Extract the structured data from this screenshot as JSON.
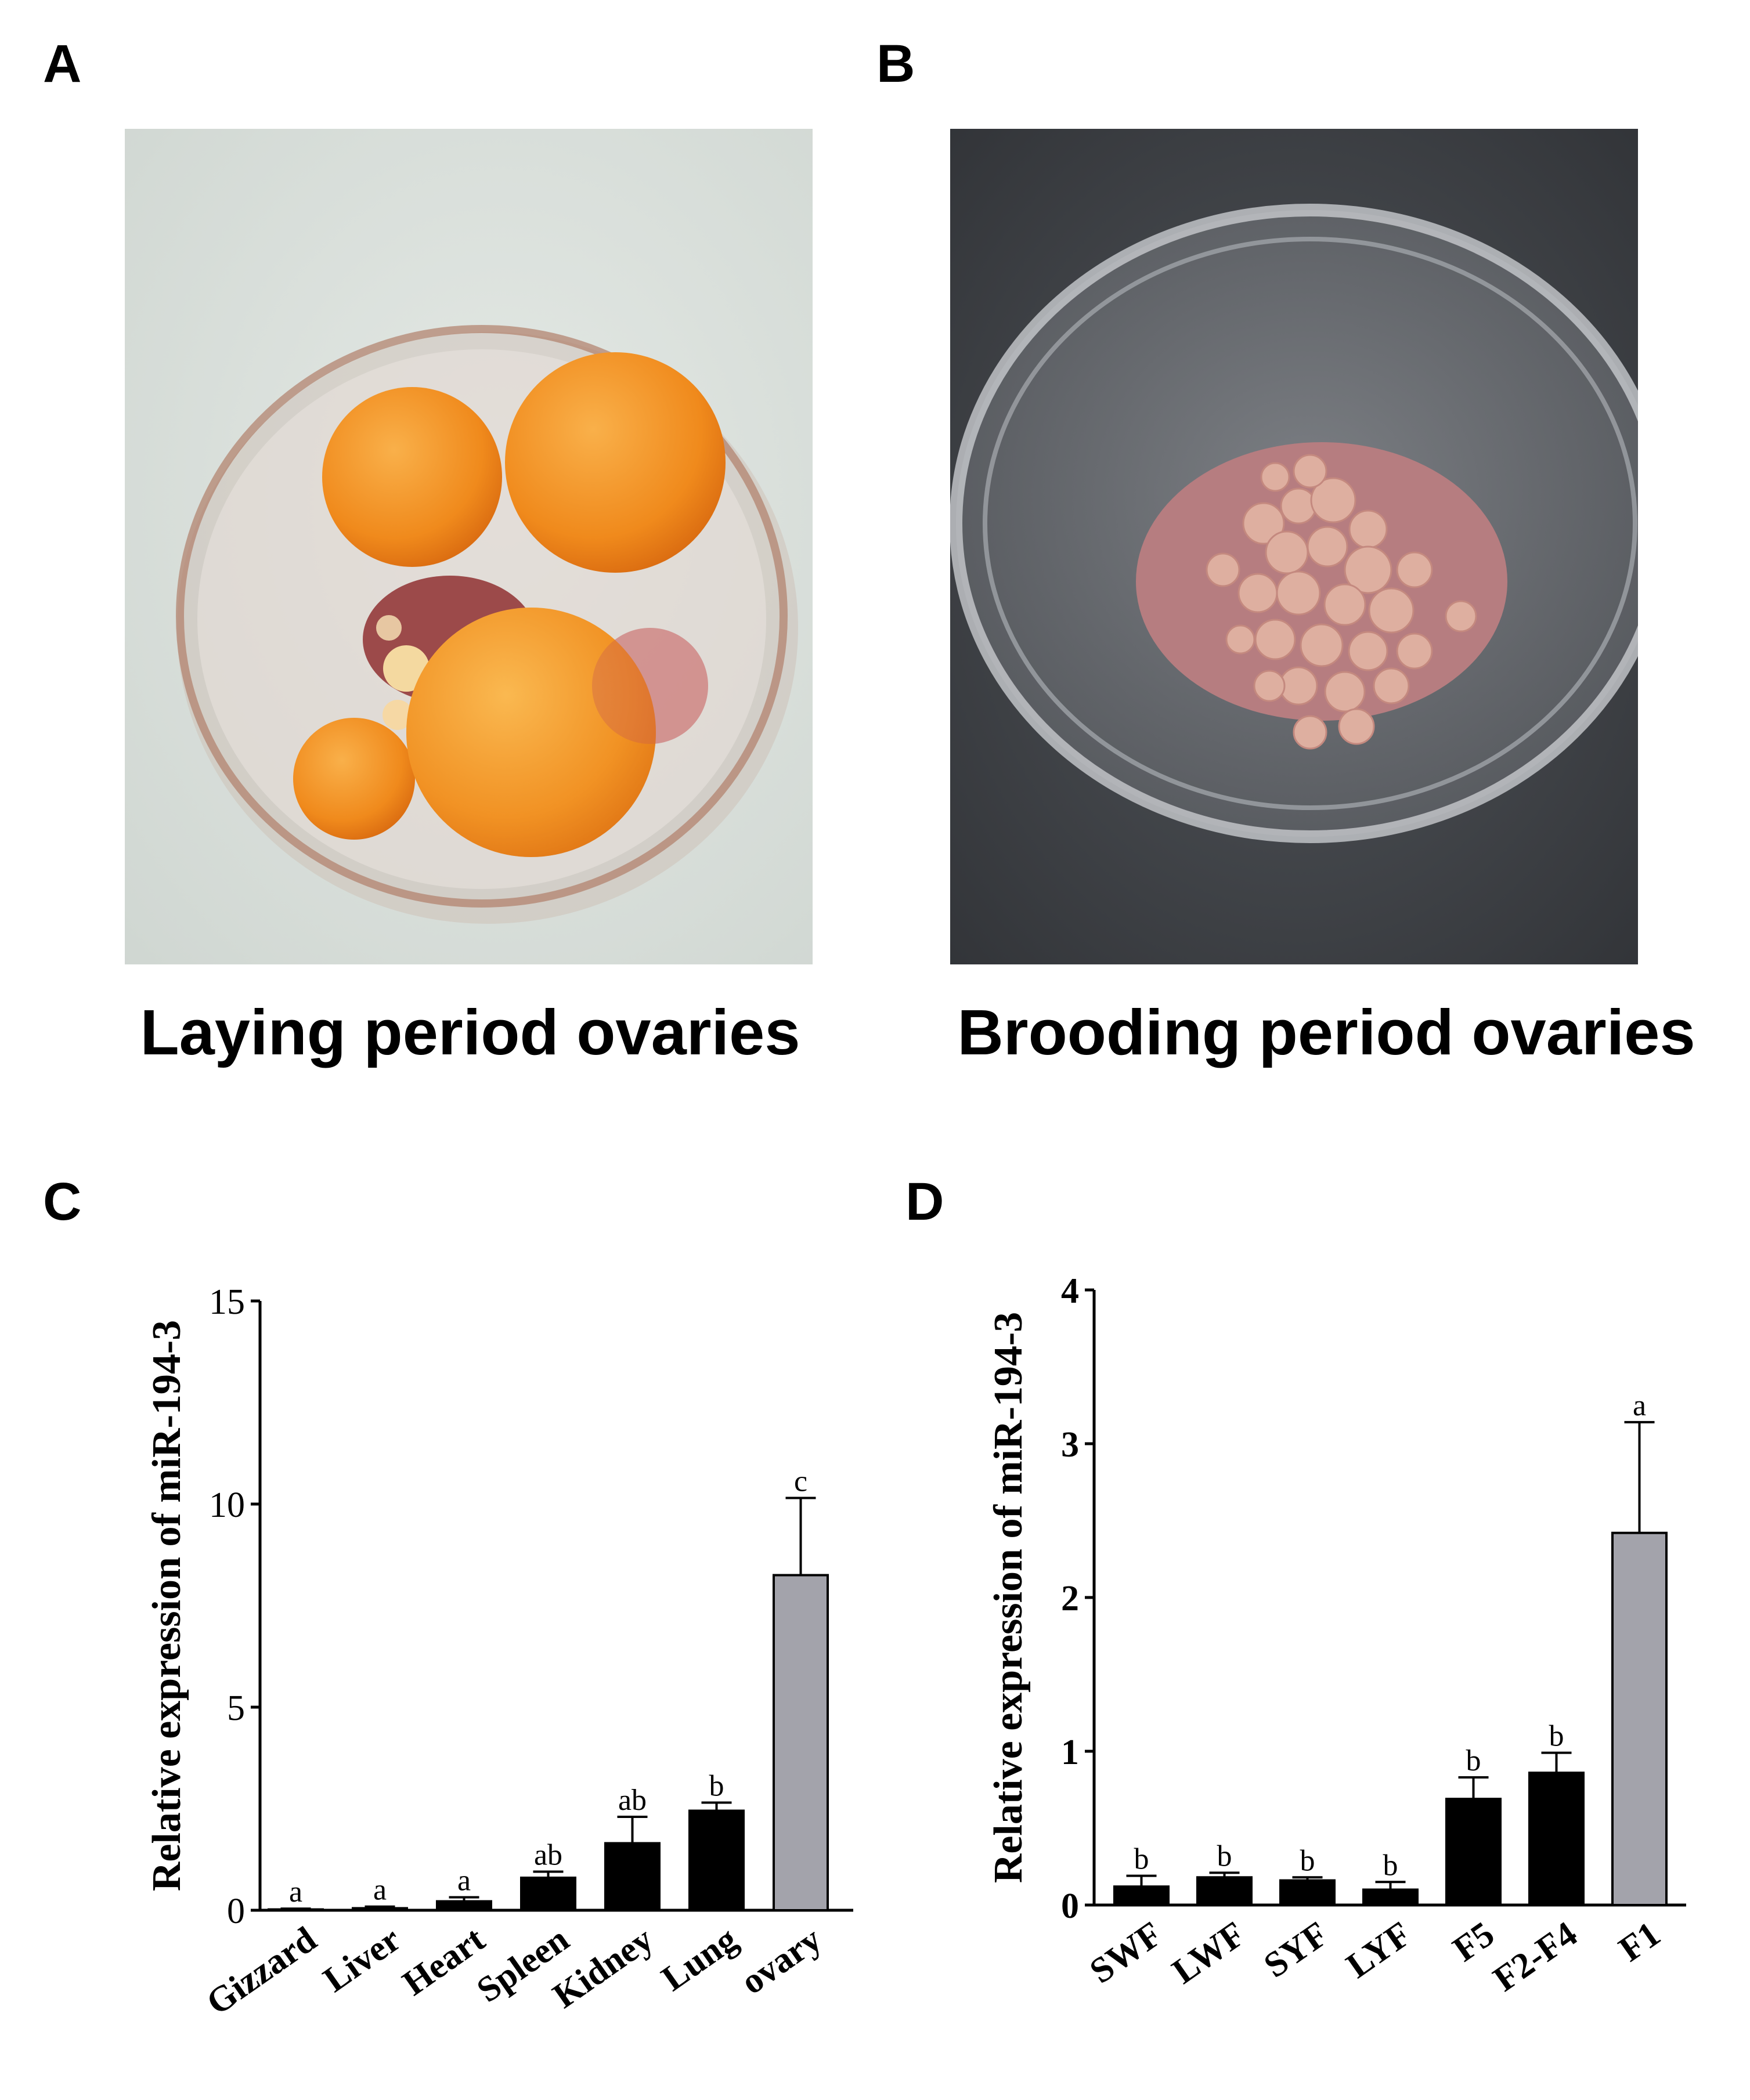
{
  "panels": {
    "A": {
      "letter": "A",
      "caption": "Laying period ovaries"
    },
    "B": {
      "letter": "B",
      "caption": "Brooding period ovaries"
    },
    "C": {
      "letter": "C"
    },
    "D": {
      "letter": "D"
    }
  },
  "colors": {
    "black_bar": "#000000",
    "grey_bar": "#a3a3ab",
    "photo_a_background": "#dce2dd",
    "photo_b_background": "#3b3e42",
    "yolk_orange": "#f08a1c",
    "follicle_pink": "#d49c92"
  },
  "chart_data": [
    {
      "panel": "C",
      "type": "bar",
      "ylabel": "Relative expression of miR-194-3",
      "ylim": [
        0,
        15
      ],
      "yticks": [
        "0",
        "5",
        "10",
        "15"
      ],
      "categories": [
        "Gizzard",
        "Liver",
        "Heart",
        "Spleen",
        "Kidney",
        "Lung",
        "ovary"
      ],
      "values": [
        0.02,
        0.05,
        0.22,
        0.8,
        1.65,
        2.45,
        8.25
      ],
      "errors": [
        0.02,
        0.04,
        0.1,
        0.15,
        0.65,
        0.2,
        1.9
      ],
      "letters": [
        "a",
        "a",
        "a",
        "ab",
        "ab",
        "b",
        "c"
      ],
      "bar_colors": [
        "#000000",
        "#000000",
        "#000000",
        "#000000",
        "#000000",
        "#000000",
        "#a3a3ab"
      ]
    },
    {
      "panel": "D",
      "type": "bar",
      "ylabel": "Relative expression of miR-194-3",
      "ylim": [
        0,
        4
      ],
      "yticks": [
        "0",
        "1",
        "2",
        "3",
        "4"
      ],
      "categories": [
        "SWF",
        "LWF",
        "SYF",
        "LYF",
        "F5",
        "F2-F4",
        "F1"
      ],
      "values": [
        0.12,
        0.18,
        0.16,
        0.1,
        0.69,
        0.86,
        2.42
      ],
      "errors": [
        0.07,
        0.03,
        0.02,
        0.05,
        0.14,
        0.13,
        0.72
      ],
      "letters": [
        "b",
        "b",
        "b",
        "b",
        "b",
        "b",
        "a"
      ],
      "bar_colors": [
        "#000000",
        "#000000",
        "#000000",
        "#000000",
        "#000000",
        "#000000",
        "#a3a3ab"
      ]
    }
  ]
}
